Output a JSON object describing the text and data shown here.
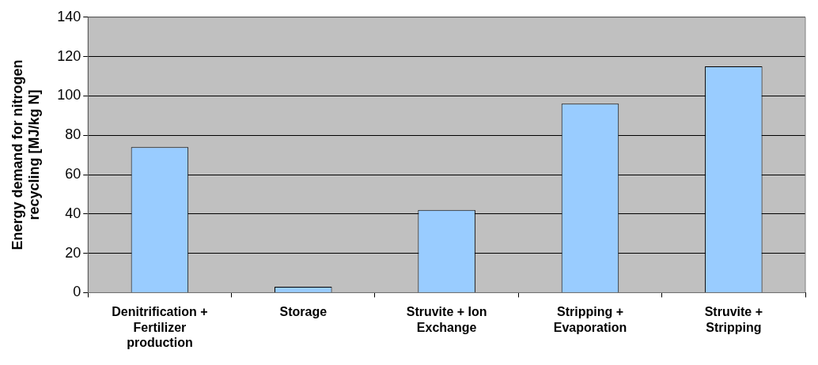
{
  "chart_data": {
    "type": "bar",
    "ylabel": "Energy demand for nitrogen recycling [MJ/kg N]",
    "categories": [
      "Denitrification + Fertilizer production",
      "Storage",
      "Struvite + Ion Exchange",
      "Stripping + Evaporation",
      "Struvite + Stripping"
    ],
    "values": [
      74,
      3,
      42,
      96,
      115
    ],
    "color": "#99ccff",
    "ylim": [
      0,
      140
    ],
    "yticks": [
      0,
      20,
      40,
      60,
      80,
      100,
      120,
      140
    ],
    "grid": "y",
    "legend": false
  }
}
